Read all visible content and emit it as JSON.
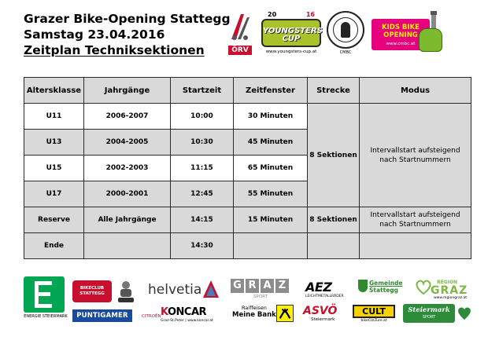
{
  "header": {
    "line1": "Grazer Bike-Opening Stattegg",
    "line2": "Samstag 23.04.2016",
    "line3": "Zeitplan Techniksektionen"
  },
  "logos_top": {
    "orv": {
      "text": "ÖRV"
    },
    "youngsters_cup": {
      "year_left": "20",
      "year_right": "16",
      "title": "YOUNGSTERS CUP",
      "url": "www.youngsters-cup.at"
    },
    "cmbc": {
      "label": "CMBC"
    },
    "kids_bike_opening": {
      "title": "KIDS BIKE OPENING",
      "url": "www.cmbc.at"
    }
  },
  "table": {
    "headers": [
      "Altersklasse",
      "Jahrgänge",
      "Startzeit",
      "Zeitfenster",
      "Strecke",
      "Modus"
    ],
    "rows": [
      {
        "altersklasse": "U11",
        "jahrgaenge": "2006-2007",
        "startzeit": "10:00",
        "zeitfenster": "30 Minuten"
      },
      {
        "altersklasse": "U13",
        "jahrgaenge": "2004-2005",
        "startzeit": "10:30",
        "zeitfenster": "45 Minuten"
      },
      {
        "altersklasse": "U15",
        "jahrgaenge": "2002-2003",
        "startzeit": "11:15",
        "zeitfenster": "65 Minuten"
      },
      {
        "altersklasse": "U17",
        "jahrgaenge": "2000-2001",
        "startzeit": "12:45",
        "zeitfenster": "55 Minuten"
      },
      {
        "altersklasse": "Reserve",
        "jahrgaenge": "Alle Jahrgänge",
        "startzeit": "14:15",
        "zeitfenster": "15 Minuten",
        "strecke": "8 Sektionen",
        "modus_line1": "Intervallstart aufsteigend",
        "modus_line2": "nach Startnummern"
      },
      {
        "altersklasse": "Ende",
        "jahrgaenge": "",
        "startzeit": "14:30",
        "zeitfenster": ""
      }
    ],
    "group_strecke": "8 Sektionen",
    "group_modus_line1": "Intervallstart aufsteigend",
    "group_modus_line2": "nach Startnummern"
  },
  "sponsors": {
    "energie": {
      "label": "ENERGIE STEIERMARK"
    },
    "bikeclub": {
      "text": "BIKECLUB STATTEGG"
    },
    "puntigamer": {
      "text": "PUNTIGAMER"
    },
    "helvetia": {
      "text": "helvetia"
    },
    "koncar": {
      "brand": "CITROËN",
      "name_k": "K",
      "name_rest": "ONCAR",
      "address": "Graz-St.Peter | www.koncar.at"
    },
    "graz_sport": {
      "letters": [
        "G",
        "R",
        "A",
        "Z"
      ],
      "sub": "SPORT"
    },
    "raiffeisen": {
      "line1": "Raiffeisen",
      "line2": "Meine Bank"
    },
    "aez": {
      "text": "AEZ",
      "sub": "LEICHTMETALLRÄDER"
    },
    "asvo": {
      "text": "ASVÖ",
      "sub": "Steiermark"
    },
    "stattegg": {
      "line1": "Gemeinde",
      "line2": "Stattegg"
    },
    "cult": {
      "text": "CULT",
      "sub": "bikeCULTure.at"
    },
    "region_graz": {
      "region": "REGION",
      "graz": "GRAZ",
      "url": "www.regiongraz.at"
    },
    "steiermark_sport": {
      "text": "Steiermark",
      "sub": "SPORT"
    }
  },
  "colors": {
    "header_gray": "#d9d9d9",
    "energie_green": "#00a651",
    "kids_pink": "#e6007e",
    "youngsters_green": "#a8c22a"
  }
}
